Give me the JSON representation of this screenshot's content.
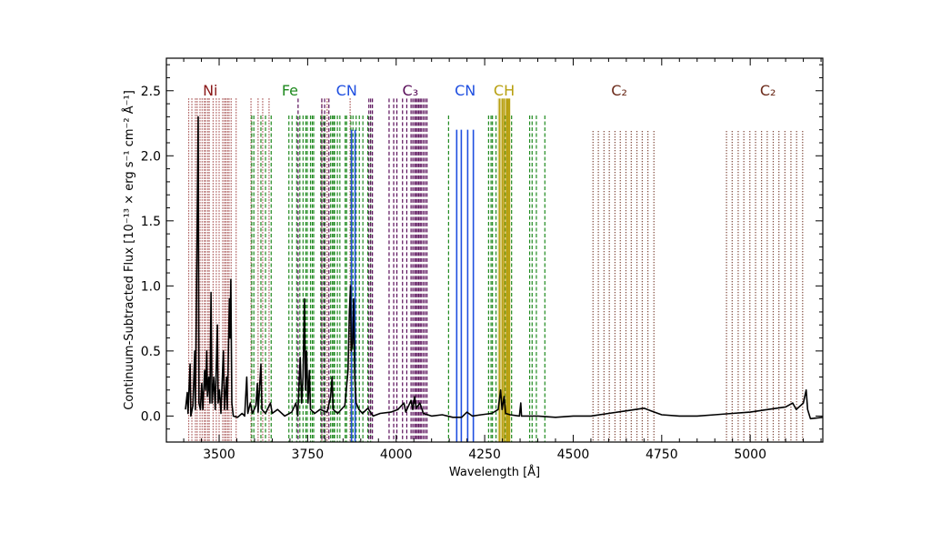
{
  "chart_data": {
    "type": "line",
    "xlabel": "Wavelength [Å]",
    "ylabel": "Continuum-Subtracted Flux [10⁻¹³ × erg s⁻¹ cm⁻² Å⁻¹]",
    "xlim": [
      3351,
      5205
    ],
    "ylim": [
      -0.2,
      2.75
    ],
    "xticks": [
      3500,
      3750,
      4000,
      4250,
      4500,
      4750,
      5000
    ],
    "xtick_labels": [
      "3500",
      "3750",
      "4000",
      "4250",
      "4500",
      "4750",
      "5000"
    ],
    "yticks": [
      0.0,
      0.5,
      1.0,
      1.5,
      2.0,
      2.5
    ],
    "ytick_labels": [
      "0.0",
      "0.5",
      "1.0",
      "1.5",
      "2.0",
      "2.5"
    ],
    "grid": false,
    "line_groups": [
      {
        "label": "Ni",
        "label_x": 3475,
        "color": "#8b1a1a",
        "style": "dotted",
        "top": 2.44,
        "wavelengths": [
          3414,
          3423,
          3433,
          3438,
          3446,
          3452,
          3458,
          3462,
          3468,
          3472,
          3483,
          3492,
          3500,
          3510,
          3515,
          3519,
          3524,
          3528,
          3534,
          3548,
          3590,
          3610,
          3623,
          3641,
          3790,
          3805,
          3870
        ]
      },
      {
        "label": "Fe",
        "label_x": 3700,
        "color": "#1f8a1f",
        "style": "dashed",
        "top": 2.31,
        "wavelengths": [
          3592,
          3598,
          3618,
          3631,
          3647,
          3697,
          3706,
          3719,
          3728,
          3737,
          3745,
          3749,
          3758,
          3763,
          3767,
          3787,
          3795,
          3799,
          3815,
          3820,
          3824,
          3826,
          3834,
          3841,
          3856,
          3860,
          3872,
          3878,
          3887,
          3896,
          3906,
          3920,
          3928,
          4148,
          4261,
          4268,
          4272,
          4282,
          4308,
          4315,
          4326,
          4377,
          4384,
          4396,
          4420
        ]
      },
      {
        "label": "C₃",
        "label_x": 4040,
        "color": "#5a0f5a",
        "style": "dashed",
        "top": 2.44,
        "wavelengths": [
          3723,
          3790,
          3798,
          3810,
          3923,
          3928,
          3933,
          3980,
          3993,
          4002,
          4018,
          4030,
          4042,
          4047,
          4052,
          4056,
          4060,
          4064,
          4068,
          4072,
          4077,
          4082,
          4087
        ]
      },
      {
        "label": "CN",
        "label_x": 3860,
        "color": "#1f4fe0",
        "style": "solid",
        "top": 2.2,
        "wavelengths": [
          3874,
          3884
        ]
      },
      {
        "label": "CN",
        "label_x": 4195,
        "color": "#1f4fe0",
        "style": "solid",
        "top": 2.2,
        "wavelengths": [
          4171,
          4184,
          4202,
          4218
        ]
      },
      {
        "label": "CH",
        "label_x": 4305,
        "color": "#b8a010",
        "style": "solid",
        "top": 2.44,
        "band": [
          4287,
          4322
        ],
        "wavelengths": [
          4292,
          4300,
          4305,
          4312,
          4316,
          4320
        ]
      },
      {
        "label": "C₂",
        "label_x": 4630,
        "color": "#6b2a1a",
        "style": "dotted",
        "top": 2.19,
        "wavelengths": [
          4556,
          4571,
          4587,
          4602,
          4618,
          4633,
          4649,
          4664,
          4680,
          4695,
          4711,
          4728
        ]
      },
      {
        "label": "C₂",
        "label_x": 5050,
        "color": "#6b2a1a",
        "style": "dotted",
        "top": 2.19,
        "wavelengths": [
          4933,
          4949,
          4966,
          4982,
          4999,
          5015,
          5032,
          5048,
          5065,
          5081,
          5098,
          5115,
          5131,
          5148
        ]
      }
    ],
    "series": [
      {
        "color": "#000000",
        "points": [
          [
            3405,
            0.05
          ],
          [
            3410,
            0.18
          ],
          [
            3412,
            0.02
          ],
          [
            3418,
            0.4
          ],
          [
            3420,
            0.0
          ],
          [
            3426,
            0.08
          ],
          [
            3431,
            0.5
          ],
          [
            3433,
            0.05
          ],
          [
            3441,
            2.3
          ],
          [
            3443,
            0.1
          ],
          [
            3447,
            0.05
          ],
          [
            3451,
            0.25
          ],
          [
            3454,
            0.05
          ],
          [
            3459,
            0.35
          ],
          [
            3462,
            0.2
          ],
          [
            3465,
            0.5
          ],
          [
            3467,
            0.15
          ],
          [
            3471,
            0.3
          ],
          [
            3474,
            0.1
          ],
          [
            3477,
            0.95
          ],
          [
            3480,
            0.1
          ],
          [
            3485,
            0.3
          ],
          [
            3489,
            0.05
          ],
          [
            3495,
            0.7
          ],
          [
            3497,
            0.1
          ],
          [
            3501,
            0.2
          ],
          [
            3505,
            0.02
          ],
          [
            3512,
            0.5
          ],
          [
            3515,
            0.05
          ],
          [
            3521,
            0.3
          ],
          [
            3523,
            0.05
          ],
          [
            3529,
            0.9
          ],
          [
            3531,
            0.6
          ],
          [
            3533,
            1.05
          ],
          [
            3536,
            0.1
          ],
          [
            3540,
            0.0
          ],
          [
            3552,
            -0.01
          ],
          [
            3565,
            0.02
          ],
          [
            3572,
            0.0
          ],
          [
            3578,
            0.3
          ],
          [
            3581,
            0.02
          ],
          [
            3588,
            0.1
          ],
          [
            3594,
            0.02
          ],
          [
            3604,
            0.08
          ],
          [
            3608,
            0.25
          ],
          [
            3610,
            0.03
          ],
          [
            3618,
            0.4
          ],
          [
            3621,
            0.05
          ],
          [
            3631,
            0.02
          ],
          [
            3645,
            0.1
          ],
          [
            3650,
            0.02
          ],
          [
            3665,
            0.05
          ],
          [
            3685,
            0.0
          ],
          [
            3705,
            0.03
          ],
          [
            3717,
            0.1
          ],
          [
            3722,
            0.0
          ],
          [
            3729,
            0.45
          ],
          [
            3733,
            0.1
          ],
          [
            3737,
            0.3
          ],
          [
            3741,
            0.9
          ],
          [
            3744,
            0.2
          ],
          [
            3747,
            0.5
          ],
          [
            3751,
            0.1
          ],
          [
            3755,
            0.35
          ],
          [
            3758,
            0.05
          ],
          [
            3770,
            0.02
          ],
          [
            3785,
            0.05
          ],
          [
            3805,
            0.03
          ],
          [
            3815,
            0.15
          ],
          [
            3819,
            0.3
          ],
          [
            3822,
            0.05
          ],
          [
            3835,
            0.02
          ],
          [
            3855,
            0.08
          ],
          [
            3864,
            0.35
          ],
          [
            3868,
            0.8
          ],
          [
            3871,
            1.0
          ],
          [
            3873,
            0.5
          ],
          [
            3877,
            0.55
          ],
          [
            3880,
            0.9
          ],
          [
            3883,
            0.3
          ],
          [
            3887,
            0.1
          ],
          [
            3895,
            0.05
          ],
          [
            3905,
            0.02
          ],
          [
            3920,
            0.06
          ],
          [
            3935,
            0.0
          ],
          [
            3955,
            0.02
          ],
          [
            3985,
            0.03
          ],
          [
            4005,
            0.05
          ],
          [
            4022,
            0.1
          ],
          [
            4027,
            0.03
          ],
          [
            4042,
            0.12
          ],
          [
            4047,
            0.05
          ],
          [
            4052,
            0.15
          ],
          [
            4057,
            0.06
          ],
          [
            4067,
            0.1
          ],
          [
            4077,
            0.02
          ],
          [
            4100,
            0.0
          ],
          [
            4130,
            0.01
          ],
          [
            4160,
            -0.01
          ],
          [
            4185,
            -0.01
          ],
          [
            4200,
            0.03
          ],
          [
            4215,
            0.0
          ],
          [
            4240,
            0.01
          ],
          [
            4270,
            0.02
          ],
          [
            4288,
            0.05
          ],
          [
            4295,
            0.2
          ],
          [
            4299,
            0.05
          ],
          [
            4305,
            0.15
          ],
          [
            4309,
            0.02
          ],
          [
            4322,
            0.01
          ],
          [
            4348,
            0.0
          ],
          [
            4352,
            0.1
          ],
          [
            4354,
            0.0
          ],
          [
            4400,
            0.0
          ],
          [
            4450,
            -0.01
          ],
          [
            4500,
            0.0
          ],
          [
            4550,
            0.0
          ],
          [
            4600,
            0.02
          ],
          [
            4650,
            0.04
          ],
          [
            4700,
            0.06
          ],
          [
            4720,
            0.04
          ],
          [
            4750,
            0.01
          ],
          [
            4800,
            0.0
          ],
          [
            4850,
            0.0
          ],
          [
            4900,
            0.01
          ],
          [
            4950,
            0.02
          ],
          [
            5000,
            0.03
          ],
          [
            5050,
            0.05
          ],
          [
            5100,
            0.07
          ],
          [
            5120,
            0.1
          ],
          [
            5130,
            0.05
          ],
          [
            5150,
            0.1
          ],
          [
            5158,
            0.2
          ],
          [
            5162,
            0.05
          ],
          [
            5170,
            -0.02
          ],
          [
            5205,
            -0.01
          ]
        ]
      }
    ]
  }
}
